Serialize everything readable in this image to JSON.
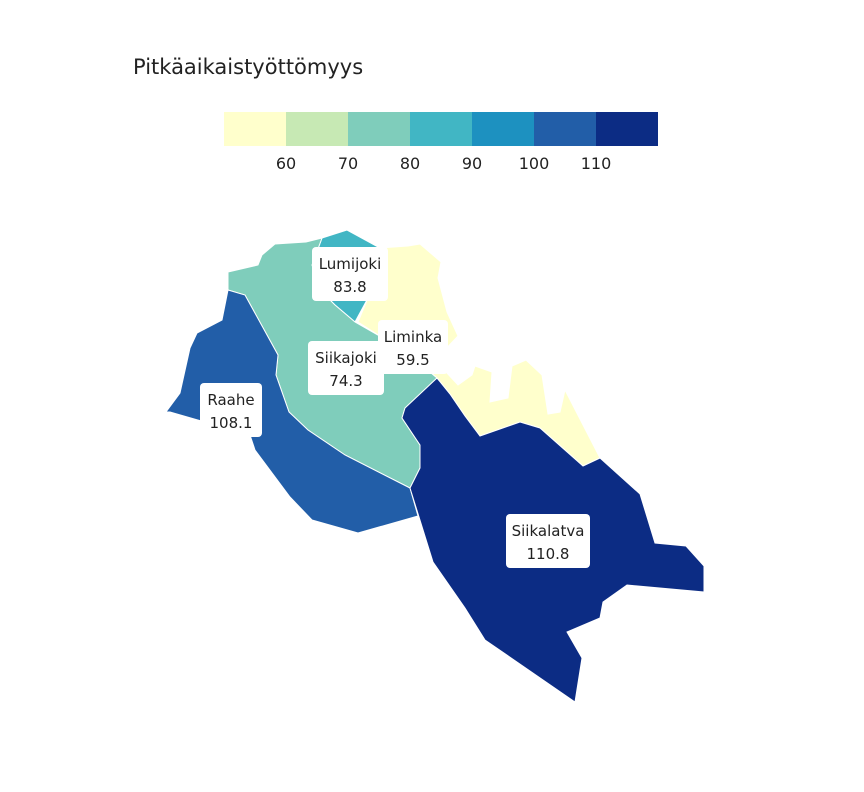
{
  "title": "Pitkäaikaistyöttömyys",
  "legend": {
    "colors": [
      "#ffffcc",
      "#c7e9b4",
      "#7fcdbb",
      "#41b6c4",
      "#1d91c0",
      "#225ea8",
      "#0c2c84"
    ],
    "ticks": [
      "60",
      "70",
      "80",
      "90",
      "100",
      "110"
    ]
  },
  "chart_data": {
    "type": "choropleth",
    "title": "Pitkäaikaistyöttömyys",
    "bins": [
      60,
      70,
      80,
      90,
      100,
      110
    ],
    "regions": [
      {
        "name": "Lumijoki",
        "value": 83.8,
        "value_label": "83.8",
        "color": "#41b6c4"
      },
      {
        "name": "Liminka",
        "value": 59.5,
        "value_label": "59.5",
        "color": "#ffffcc"
      },
      {
        "name": "Siikajoki",
        "value": 74.3,
        "value_label": "74.3",
        "color": "#7fcdbb"
      },
      {
        "name": "Raahe",
        "value": 108.1,
        "value_label": "108.1",
        "color": "#225ea8"
      },
      {
        "name": "Siikalatva",
        "value": 110.8,
        "value_label": "110.8",
        "color": "#0c2c84"
      }
    ]
  }
}
